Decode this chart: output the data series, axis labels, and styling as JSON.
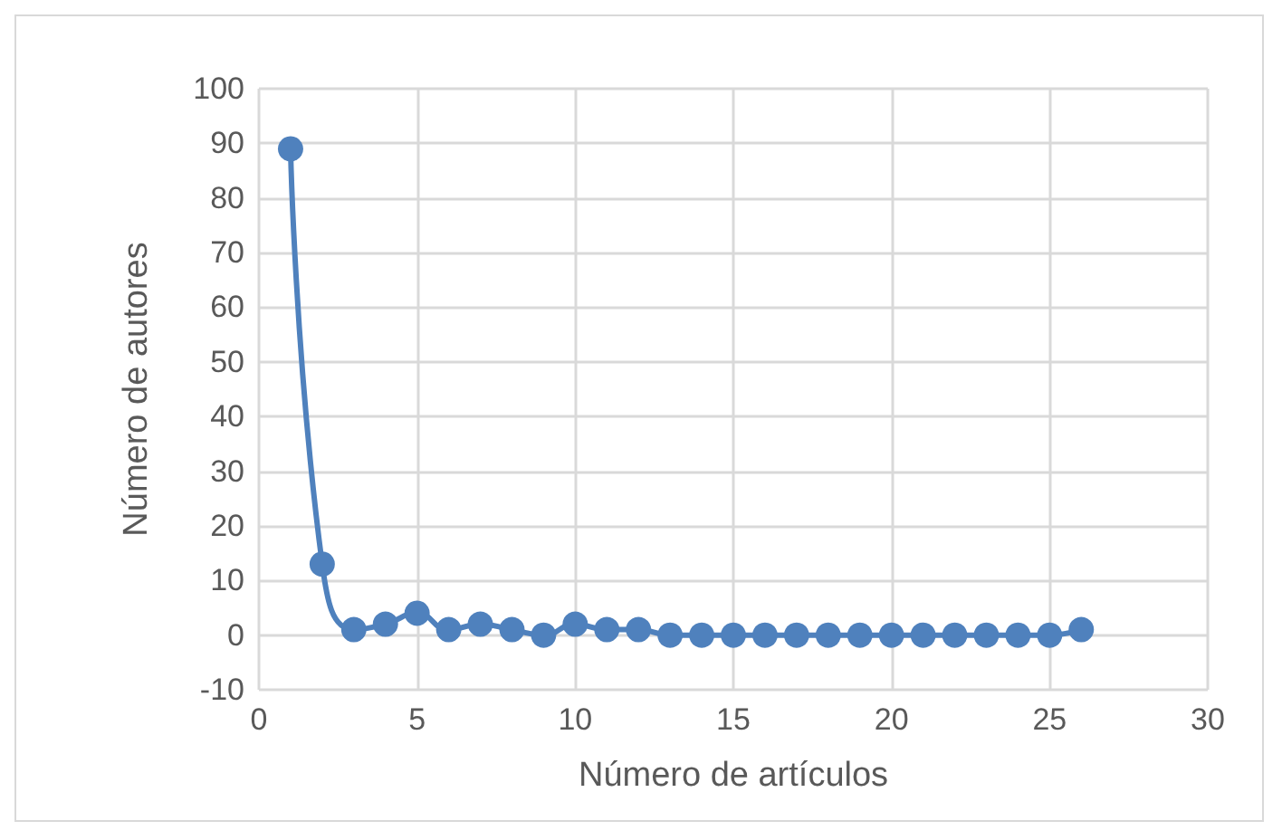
{
  "chart_data": {
    "type": "line",
    "xlabel": "Número de artículos",
    "ylabel": "Número de autores",
    "x": [
      1,
      2,
      3,
      4,
      5,
      6,
      7,
      8,
      9,
      10,
      11,
      12,
      13,
      14,
      15,
      16,
      17,
      18,
      19,
      20,
      21,
      22,
      23,
      24,
      25,
      26
    ],
    "series": [
      {
        "color": "#4f81bd",
        "values": [
          89,
          13,
          1,
          2,
          4,
          1,
          2,
          1,
          0,
          2,
          1,
          1,
          0,
          0,
          0,
          0,
          0,
          0,
          0,
          0,
          0,
          0,
          0,
          0,
          0,
          1
        ]
      }
    ],
    "xlim": [
      0,
      30
    ],
    "xticks": [
      0,
      5,
      10,
      15,
      20,
      25,
      30
    ],
    "ylim": [
      -10,
      100
    ],
    "yticks": [
      -10,
      0,
      10,
      20,
      30,
      40,
      50,
      60,
      70,
      80,
      90,
      100
    ],
    "grid": true,
    "marker": "circle",
    "line_style": "solid"
  }
}
